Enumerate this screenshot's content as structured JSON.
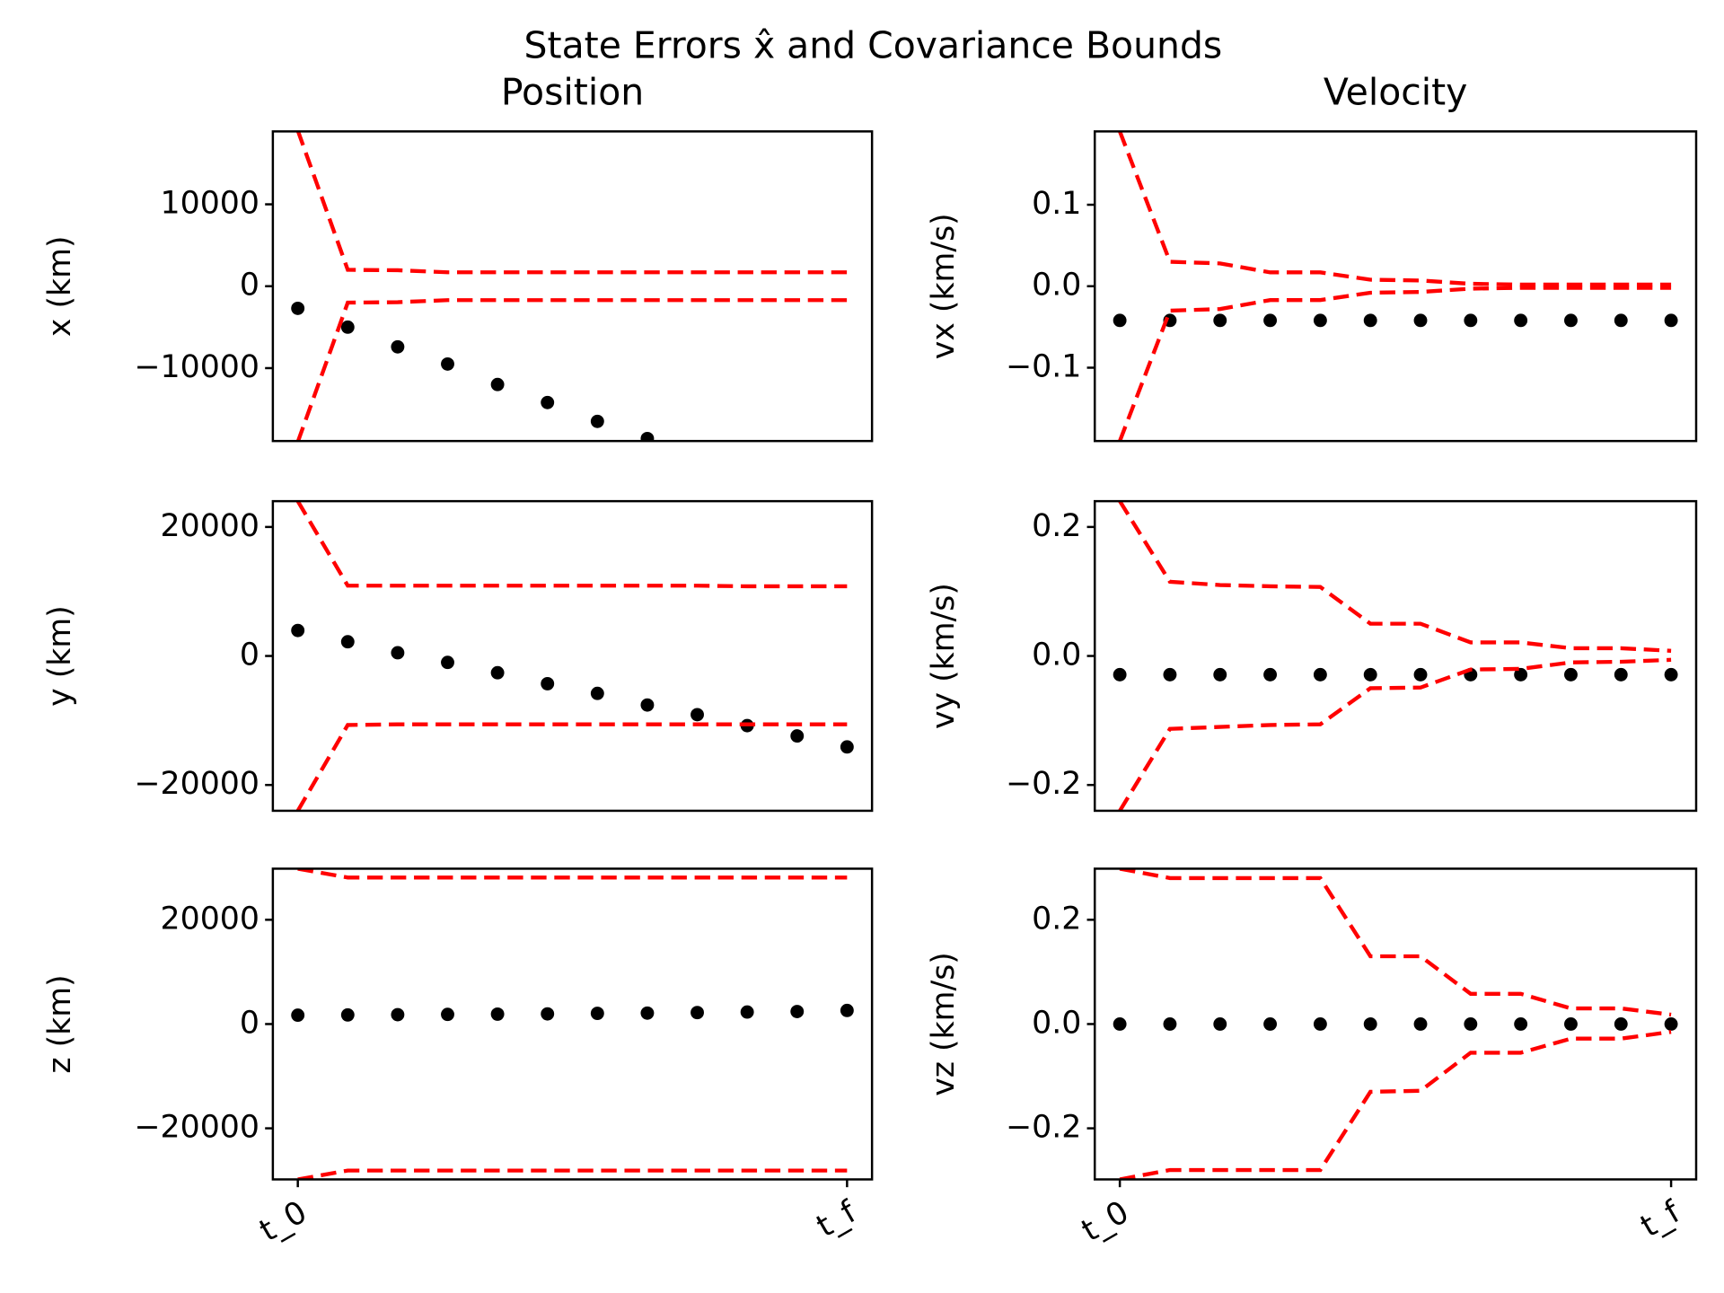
{
  "title": "State Errors x̂ and Covariance Bounds",
  "chart_data": [
    {
      "type": "line",
      "title": "Position",
      "ylabel": "x (km)",
      "x": [
        0,
        1,
        2,
        3,
        4,
        5,
        6,
        7,
        8,
        9,
        10,
        11
      ],
      "xlim": [
        -0.5,
        11.5
      ],
      "ylim": [
        -18900,
        18900
      ],
      "yticks": [
        {
          "value": -10000,
          "label": "−10000"
        },
        0,
        10000
      ],
      "series": [
        {
          "style": "markers",
          "color": "#000000",
          "values": [
            -2700,
            -5000,
            -7400,
            -9500,
            -12000,
            -14200,
            -16500,
            -18600,
            null,
            null,
            null,
            null
          ]
        },
        {
          "style": "dashed",
          "color": "#ff0000",
          "values": [
            19000,
            2000,
            1950,
            1700,
            1700,
            1700,
            1700,
            1700,
            1700,
            1700,
            1700,
            1700
          ]
        },
        {
          "style": "dashed",
          "color": "#ff0000",
          "values": [
            -19000,
            -2000,
            -1950,
            -1700,
            -1700,
            -1700,
            -1700,
            -1700,
            -1700,
            -1700,
            -1700,
            -1700
          ]
        }
      ]
    },
    {
      "type": "line",
      "title": "Velocity",
      "ylabel": "vx (km/s)",
      "x": [
        0,
        1,
        2,
        3,
        4,
        5,
        6,
        7,
        8,
        9,
        10,
        11
      ],
      "xlim": [
        -0.5,
        11.5
      ],
      "ylim": [
        -0.19,
        0.19
      ],
      "yticks": [
        {
          "value": -0.1,
          "label": "−0.1"
        },
        {
          "value": 0,
          "label": "0.0"
        },
        0.1
      ],
      "series": [
        {
          "style": "markers",
          "color": "#000000",
          "values": [
            -0.042,
            -0.042,
            -0.042,
            -0.042,
            -0.042,
            -0.042,
            -0.042,
            -0.042,
            -0.042,
            -0.042,
            -0.042,
            -0.042
          ]
        },
        {
          "style": "dashed",
          "color": "#ff0000",
          "values": [
            0.19,
            0.03,
            0.028,
            0.017,
            0.017,
            0.008,
            0.007,
            0.003,
            0.002,
            0.002,
            0.002,
            0.002
          ]
        },
        {
          "style": "dashed",
          "color": "#ff0000",
          "values": [
            -0.19,
            -0.03,
            -0.028,
            -0.017,
            -0.017,
            -0.008,
            -0.007,
            -0.003,
            -0.002,
            -0.002,
            -0.002,
            -0.002
          ]
        }
      ]
    },
    {
      "type": "line",
      "ylabel": "y (km)",
      "x": [
        0,
        1,
        2,
        3,
        4,
        5,
        6,
        7,
        8,
        9,
        10,
        11
      ],
      "xlim": [
        -0.5,
        11.5
      ],
      "ylim": [
        -24000,
        24000
      ],
      "yticks": [
        {
          "value": -20000,
          "label": "−20000"
        },
        0,
        20000
      ],
      "series": [
        {
          "style": "markers",
          "color": "#000000",
          "values": [
            3950,
            2200,
            500,
            -1000,
            -2600,
            -4300,
            -5800,
            -7600,
            -9100,
            -10800,
            -12400,
            -14100
          ]
        },
        {
          "style": "dashed",
          "color": "#ff0000",
          "values": [
            24000,
            10900,
            10900,
            10900,
            10900,
            10900,
            10900,
            10900,
            10900,
            10800,
            10800,
            10800
          ]
        },
        {
          "style": "dashed",
          "color": "#ff0000",
          "values": [
            -24000,
            -10700,
            -10600,
            -10600,
            -10600,
            -10600,
            -10600,
            -10600,
            -10600,
            -10600,
            -10600,
            -10600
          ]
        }
      ]
    },
    {
      "type": "line",
      "ylabel": "vy (km/s)",
      "x": [
        0,
        1,
        2,
        3,
        4,
        5,
        6,
        7,
        8,
        9,
        10,
        11
      ],
      "xlim": [
        -0.5,
        11.5
      ],
      "ylim": [
        -0.24,
        0.24
      ],
      "yticks": [
        {
          "value": -0.2,
          "label": "−0.2"
        },
        {
          "value": 0,
          "label": "0.0"
        },
        0.2
      ],
      "series": [
        {
          "style": "markers",
          "color": "#000000",
          "values": [
            -0.029,
            -0.029,
            -0.029,
            -0.029,
            -0.029,
            -0.029,
            -0.029,
            -0.029,
            -0.029,
            -0.029,
            -0.029,
            -0.029
          ]
        },
        {
          "style": "dashed",
          "color": "#ff0000",
          "values": [
            0.24,
            0.115,
            0.11,
            0.108,
            0.107,
            0.05,
            0.05,
            0.021,
            0.021,
            0.012,
            0.012,
            0.008
          ]
        },
        {
          "style": "dashed",
          "color": "#ff0000",
          "values": [
            -0.24,
            -0.113,
            -0.11,
            -0.107,
            -0.106,
            -0.05,
            -0.049,
            -0.021,
            -0.02,
            -0.01,
            -0.009,
            -0.006
          ]
        }
      ]
    },
    {
      "type": "line",
      "ylabel": "z (km)",
      "x": [
        0,
        1,
        2,
        3,
        4,
        5,
        6,
        7,
        8,
        9,
        10,
        11
      ],
      "xlim": [
        -0.5,
        11.5
      ],
      "xticks": [
        {
          "value": 0,
          "label": "t_0"
        },
        {
          "value": 11,
          "label": "t_f"
        }
      ],
      "ylim": [
        -29800,
        29800
      ],
      "yticks": [
        {
          "value": -20000,
          "label": "−20000"
        },
        0,
        20000
      ],
      "series": [
        {
          "style": "markers",
          "color": "#000000",
          "values": [
            1700,
            1750,
            1800,
            1850,
            1900,
            1950,
            2050,
            2100,
            2200,
            2300,
            2400,
            2600
          ]
        },
        {
          "style": "dashed",
          "color": "#ff0000",
          "values": [
            29800,
            28100,
            28100,
            28100,
            28100,
            28100,
            28100,
            28100,
            28100,
            28100,
            28100,
            28100
          ]
        },
        {
          "style": "dashed",
          "color": "#ff0000",
          "values": [
            -29800,
            -28100,
            -28100,
            -28100,
            -28100,
            -28100,
            -28100,
            -28100,
            -28100,
            -28100,
            -28100,
            -28100
          ]
        }
      ]
    },
    {
      "type": "line",
      "ylabel": "vz (km/s)",
      "x": [
        0,
        1,
        2,
        3,
        4,
        5,
        6,
        7,
        8,
        9,
        10,
        11
      ],
      "xlim": [
        -0.5,
        11.5
      ],
      "xticks": [
        {
          "value": 0,
          "label": "t_0"
        },
        {
          "value": 11,
          "label": "t_f"
        }
      ],
      "ylim": [
        -0.298,
        0.298
      ],
      "yticks": [
        {
          "value": -0.2,
          "label": "−0.2"
        },
        {
          "value": 0,
          "label": "0.0"
        },
        0.2
      ],
      "series": [
        {
          "style": "markers",
          "color": "#000000",
          "values": [
            0,
            0,
            0,
            0,
            0,
            0,
            0,
            0,
            0,
            0,
            0,
            0
          ]
        },
        {
          "style": "dashed",
          "color": "#ff0000",
          "values": [
            0.298,
            0.28,
            0.28,
            0.28,
            0.28,
            0.13,
            0.13,
            0.058,
            0.058,
            0.03,
            0.03,
            0.018
          ]
        },
        {
          "style": "dashed",
          "color": "#ff0000",
          "values": [
            -0.298,
            -0.28,
            -0.28,
            -0.28,
            -0.28,
            -0.13,
            -0.128,
            -0.055,
            -0.055,
            -0.028,
            -0.028,
            -0.015
          ]
        }
      ]
    }
  ]
}
